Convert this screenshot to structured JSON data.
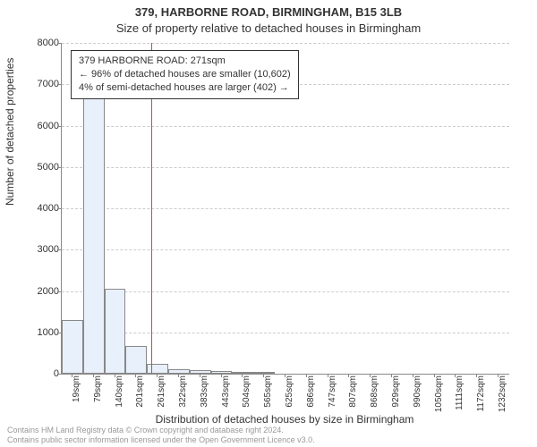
{
  "title_main": "379, HARBORNE ROAD, BIRMINGHAM, B15 3LB",
  "title_sub": "Size of property relative to detached houses in Birmingham",
  "chart": {
    "type": "histogram",
    "ylabel": "Number of detached properties",
    "xlabel": "Distribution of detached houses by size in Birmingham",
    "ylim_min": 0,
    "ylim_max": 8000,
    "ytick_step": 1000,
    "xtick_labels": [
      "19sqm",
      "79sqm",
      "140sqm",
      "201sqm",
      "261sqm",
      "322sqm",
      "383sqm",
      "443sqm",
      "504sqm",
      "565sqm",
      "625sqm",
      "686sqm",
      "747sqm",
      "807sqm",
      "868sqm",
      "929sqm",
      "990sqm",
      "1050sqm",
      "1111sqm",
      "1172sqm",
      "1232sqm"
    ],
    "bars": [
      1300,
      6800,
      2050,
      680,
      240,
      100,
      80,
      60,
      40,
      30,
      0,
      0,
      0,
      0,
      0,
      0,
      0,
      0,
      0,
      0,
      0
    ],
    "bar_fill": "#e8f0fb",
    "bar_border": "#888888",
    "grid_color": "#cccccc",
    "axis_color": "#888888",
    "background": "#ffffff",
    "marker": {
      "position_index": 4,
      "fraction_into_bin": 0.18,
      "color": "#d94545"
    },
    "annotation": {
      "line1": "379 HARBORNE ROAD: 271sqm",
      "line2": "← 96% of detached houses are smaller (10,602)",
      "line3": "4% of semi-detached houses are larger (402) →",
      "border": "#333333",
      "bg": "#ffffff",
      "fontsize": 11
    },
    "title_fontsize": 13,
    "label_fontsize": 12,
    "tick_fontsize": 11
  },
  "footer": {
    "line1": "Contains HM Land Registry data © Crown copyright and database right 2024.",
    "line2": "Contains public sector information licensed under the Open Government Licence v3.0.",
    "color": "#999999",
    "fontsize": 9
  }
}
